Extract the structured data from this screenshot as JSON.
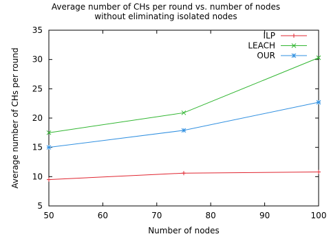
{
  "chart_data": {
    "type": "line",
    "title_lines": [
      "Average number of CHs per round vs. number of nodes",
      "without eliminating isolated nodes"
    ],
    "xlabel": "Number of nodes",
    "ylabel": "Average number of CHs per round",
    "xlim": [
      50,
      100
    ],
    "ylim": [
      5,
      35
    ],
    "x_ticks": [
      50,
      60,
      70,
      80,
      90,
      100
    ],
    "y_ticks": [
      5,
      10,
      15,
      20,
      25,
      30,
      35
    ],
    "grid": false,
    "legend_position": "top-right",
    "x": [
      50,
      75,
      100
    ],
    "series": [
      {
        "name": "ILP",
        "values": [
          9.5,
          10.6,
          10.8
        ],
        "color": "#e0242f",
        "marker": "plus"
      },
      {
        "name": "LEACH",
        "values": [
          17.5,
          20.9,
          30.3
        ],
        "color": "#2fb52f",
        "marker": "cross"
      },
      {
        "name": "OUR",
        "values": [
          15.0,
          17.9,
          22.7
        ],
        "color": "#2f8fe0",
        "marker": "star"
      }
    ]
  }
}
